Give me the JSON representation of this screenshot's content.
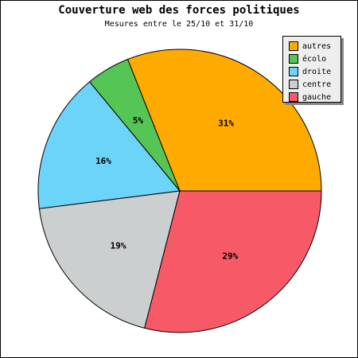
{
  "chart_data": {
    "type": "pie",
    "title": "Couverture web des forces politiques",
    "subtitle": "Mesures entre le 25/10 et 31/10",
    "slices": [
      {
        "label": "autres",
        "value": 31,
        "display": "31%",
        "color": "#ffaa00"
      },
      {
        "label": "écolo",
        "value": 5,
        "display": "5%",
        "color": "#55c655"
      },
      {
        "label": "droite",
        "value": 16,
        "display": "16%",
        "color": "#6cd4f8"
      },
      {
        "label": "centre",
        "value": 19,
        "display": "19%",
        "color": "#cccfcf"
      },
      {
        "label": "gauche",
        "value": 29,
        "display": "29%",
        "color": "#f75a67"
      }
    ],
    "legend": {
      "position": "top-right",
      "items": [
        "autres",
        "écolo",
        "droite",
        "centre",
        "gauche"
      ]
    }
  }
}
